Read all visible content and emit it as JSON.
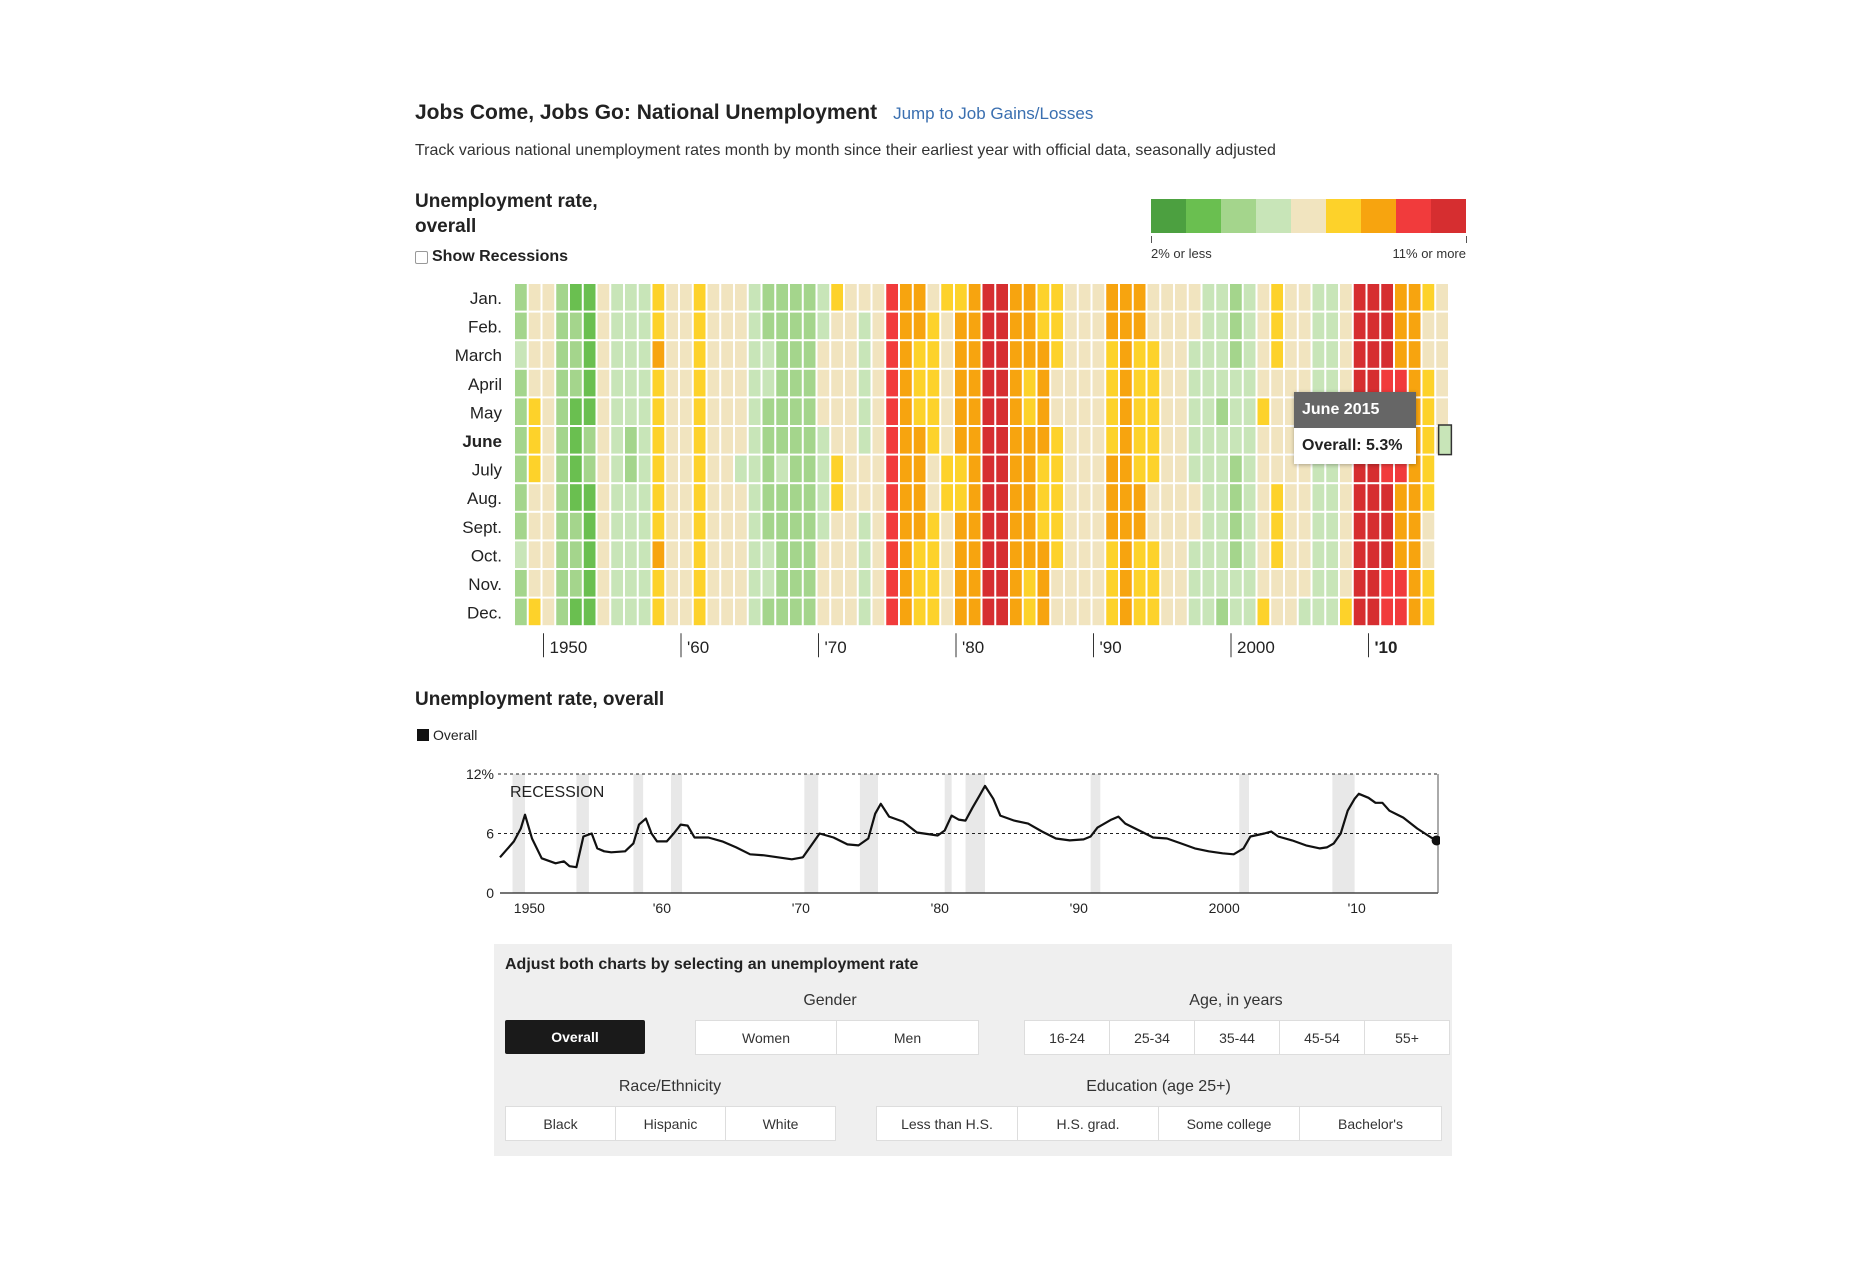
{
  "header": {
    "title": "Jobs Come, Jobs Go: National Unemployment",
    "jump_link": "Jump to Job Gains/Losses",
    "subtitle": "Track various national unemployment rates month by month since their earliest year with official data, seasonally adjusted"
  },
  "heatmap_section": {
    "title": "Unemployment rate, overall",
    "recession_toggle": "Show Recessions",
    "legend_low": "2% or less",
    "legend_high": "11% or more",
    "legend_colors": [
      "#4ca040",
      "#6abf50",
      "#a4d58c",
      "#c8e5b8",
      "#f1e4bf",
      "#fdd22a",
      "#f7a40f",
      "#f13b3c",
      "#d62e30"
    ]
  },
  "tooltip": {
    "title": "June 2015",
    "value": "Overall: 5.3%"
  },
  "line_section": {
    "title": "Unemployment rate, overall",
    "legend": "Overall",
    "recession_label": "RECESSION"
  },
  "controls": {
    "title": "Adjust both charts by selecting an unemployment rate",
    "overall": "Overall",
    "gender_label": "Gender",
    "gender": [
      "Women",
      "Men"
    ],
    "age_label": "Age, in years",
    "age": [
      "16-24",
      "25-34",
      "35-44",
      "45-54",
      "55+"
    ],
    "race_label": "Race/Ethnicity",
    "race": [
      "Black",
      "Hispanic",
      "White"
    ],
    "edu_label": "Education (age 25+)",
    "education": [
      "Less than H.S.",
      "H.S. grad.",
      "Some college",
      "Bachelor's"
    ]
  },
  "chart_data": [
    {
      "type": "heatmap",
      "title": "Unemployment rate, overall",
      "y_categories": [
        "Jan.",
        "Feb.",
        "March",
        "April",
        "May",
        "June",
        "July",
        "Aug.",
        "Sept.",
        "Oct.",
        "Nov.",
        "Dec."
      ],
      "highlighted_month": "June",
      "x_ticks": [
        {
          "year": 1950,
          "label": "1950"
        },
        {
          "year": 1960,
          "label": "'60"
        },
        {
          "year": 1970,
          "label": "'70"
        },
        {
          "year": 1980,
          "label": "'80"
        },
        {
          "year": 1990,
          "label": "'90"
        },
        {
          "year": 2000,
          "label": "2000"
        },
        {
          "year": 2010,
          "label": "'10"
        }
      ],
      "highlighted_tick": "'10",
      "color_bins": [
        2,
        3,
        4,
        5,
        6,
        7,
        8,
        9,
        10
      ],
      "years": [
        1948,
        1949,
        1950,
        1951,
        1952,
        1953,
        1954,
        1955,
        1956,
        1957,
        1958,
        1959,
        1960,
        1961,
        1962,
        1963,
        1964,
        1965,
        1966,
        1967,
        1968,
        1969,
        1970,
        1971,
        1972,
        1973,
        1974,
        1975,
        1976,
        1977,
        1978,
        1979,
        1980,
        1981,
        1982,
        1983,
        1984,
        1985,
        1986,
        1987,
        1988,
        1989,
        1990,
        1991,
        1992,
        1993,
        1994,
        1995,
        1996,
        1997,
        1998,
        1999,
        2000,
        2001,
        2002,
        2003,
        2004,
        2005,
        2006,
        2007,
        2008,
        2009,
        2010,
        2011,
        2012,
        2013,
        2014,
        2015
      ],
      "year_levels": [
        3.8,
        5.9,
        5.3,
        3.3,
        3.0,
        2.9,
        5.5,
        4.4,
        4.1,
        4.3,
        6.8,
        5.5,
        5.5,
        6.7,
        5.5,
        5.7,
        5.2,
        4.5,
        3.8,
        3.8,
        3.6,
        3.5,
        4.9,
        5.9,
        5.6,
        4.9,
        5.6,
        8.5,
        7.7,
        7.1,
        6.1,
        5.9,
        7.2,
        7.6,
        9.7,
        9.6,
        7.5,
        7.2,
        7.0,
        6.2,
        5.5,
        5.3,
        5.6,
        6.9,
        7.5,
        6.9,
        6.1,
        5.6,
        5.4,
        4.9,
        4.5,
        4.2,
        4.0,
        4.7,
        5.8,
        6.0,
        5.5,
        5.1,
        4.6,
        4.6,
        5.8,
        9.3,
        9.6,
        8.9,
        8.1,
        7.4,
        6.2,
        5.4
      ],
      "months_in_last_year": 6,
      "selected": {
        "year": 2015,
        "month": "June",
        "value": 5.3
      }
    },
    {
      "type": "line",
      "title": "Unemployment rate, overall",
      "series": [
        {
          "name": "Overall",
          "x": [
            1948.0,
            1949.0,
            1949.5,
            1949.8,
            1950.3,
            1951.0,
            1952.0,
            1952.6,
            1953.0,
            1953.5,
            1954.0,
            1954.6,
            1955.0,
            1955.5,
            1956.0,
            1957.0,
            1957.6,
            1958.0,
            1958.5,
            1958.9,
            1959.3,
            1960.0,
            1960.5,
            1961.0,
            1961.5,
            1962.0,
            1963.0,
            1964.0,
            1965.0,
            1966.0,
            1967.0,
            1968.0,
            1969.0,
            1969.8,
            1970.5,
            1971.0,
            1972.0,
            1973.0,
            1973.8,
            1974.5,
            1975.0,
            1975.4,
            1976.0,
            1977.0,
            1978.0,
            1979.0,
            1979.5,
            1980.0,
            1980.5,
            1981.0,
            1981.5,
            1982.0,
            1982.5,
            1982.9,
            1983.5,
            1984.0,
            1985.0,
            1986.0,
            1987.0,
            1988.0,
            1989.0,
            1990.0,
            1990.5,
            1991.0,
            1992.0,
            1992.5,
            1993.0,
            1994.0,
            1995.0,
            1996.0,
            1997.0,
            1998.0,
            1999.0,
            2000.0,
            2000.8,
            2001.5,
            2002.0,
            2003.0,
            2003.5,
            2004.0,
            2005.0,
            2006.0,
            2007.0,
            2007.5,
            2008.0,
            2008.5,
            2009.0,
            2009.5,
            2009.8,
            2010.5,
            2011.0,
            2011.5,
            2012.0,
            2013.0,
            2014.0,
            2015.0,
            2015.4
          ],
          "y": [
            3.6,
            5.2,
            6.5,
            7.9,
            5.5,
            3.5,
            3.0,
            3.2,
            2.7,
            2.6,
            5.7,
            6.0,
            4.5,
            4.2,
            4.1,
            4.2,
            5.0,
            6.9,
            7.5,
            6.0,
            5.2,
            5.2,
            6.0,
            6.9,
            6.8,
            5.6,
            5.6,
            5.2,
            4.6,
            3.9,
            3.8,
            3.6,
            3.4,
            3.6,
            5.0,
            6.0,
            5.6,
            4.9,
            4.8,
            5.5,
            8.0,
            9.0,
            7.7,
            7.2,
            6.1,
            5.9,
            5.8,
            6.3,
            7.8,
            7.4,
            7.3,
            8.6,
            9.8,
            10.8,
            9.5,
            7.8,
            7.3,
            7.0,
            6.2,
            5.5,
            5.3,
            5.4,
            5.7,
            6.6,
            7.4,
            7.7,
            7.0,
            6.3,
            5.6,
            5.5,
            5.0,
            4.5,
            4.2,
            4.0,
            3.9,
            4.5,
            5.7,
            6.0,
            6.2,
            5.7,
            5.3,
            4.8,
            4.5,
            4.6,
            5.0,
            6.0,
            8.3,
            9.5,
            10.0,
            9.6,
            9.1,
            9.1,
            8.3,
            7.6,
            6.5,
            5.6,
            5.3
          ]
        }
      ],
      "recessions": [
        [
          1948.9,
          1949.8
        ],
        [
          1953.5,
          1954.4
        ],
        [
          1957.6,
          1958.3
        ],
        [
          1960.3,
          1961.1
        ],
        [
          1969.9,
          1970.9
        ],
        [
          1973.9,
          1975.2
        ],
        [
          1980.0,
          1980.5
        ],
        [
          1981.5,
          1982.9
        ],
        [
          1990.5,
          1991.2
        ],
        [
          2001.2,
          2001.9
        ],
        [
          2007.9,
          2009.5
        ]
      ],
      "y_ticks": [
        0,
        6,
        12
      ],
      "y_tick_labels": [
        "0",
        "6",
        "12%"
      ],
      "ylim": [
        0,
        12
      ],
      "xlim": [
        1948,
        2015.5
      ],
      "x_ticks": [
        {
          "year": 1950,
          "label": "1950"
        },
        {
          "year": 1960,
          "label": "'60"
        },
        {
          "year": 1970,
          "label": "'70"
        },
        {
          "year": 1980,
          "label": "'80"
        },
        {
          "year": 1990,
          "label": "'90"
        },
        {
          "year": 2000,
          "label": "2000"
        },
        {
          "year": 2010,
          "label": "'10"
        }
      ],
      "reference_lines": [
        6,
        12
      ],
      "legend": "top-left"
    }
  ]
}
